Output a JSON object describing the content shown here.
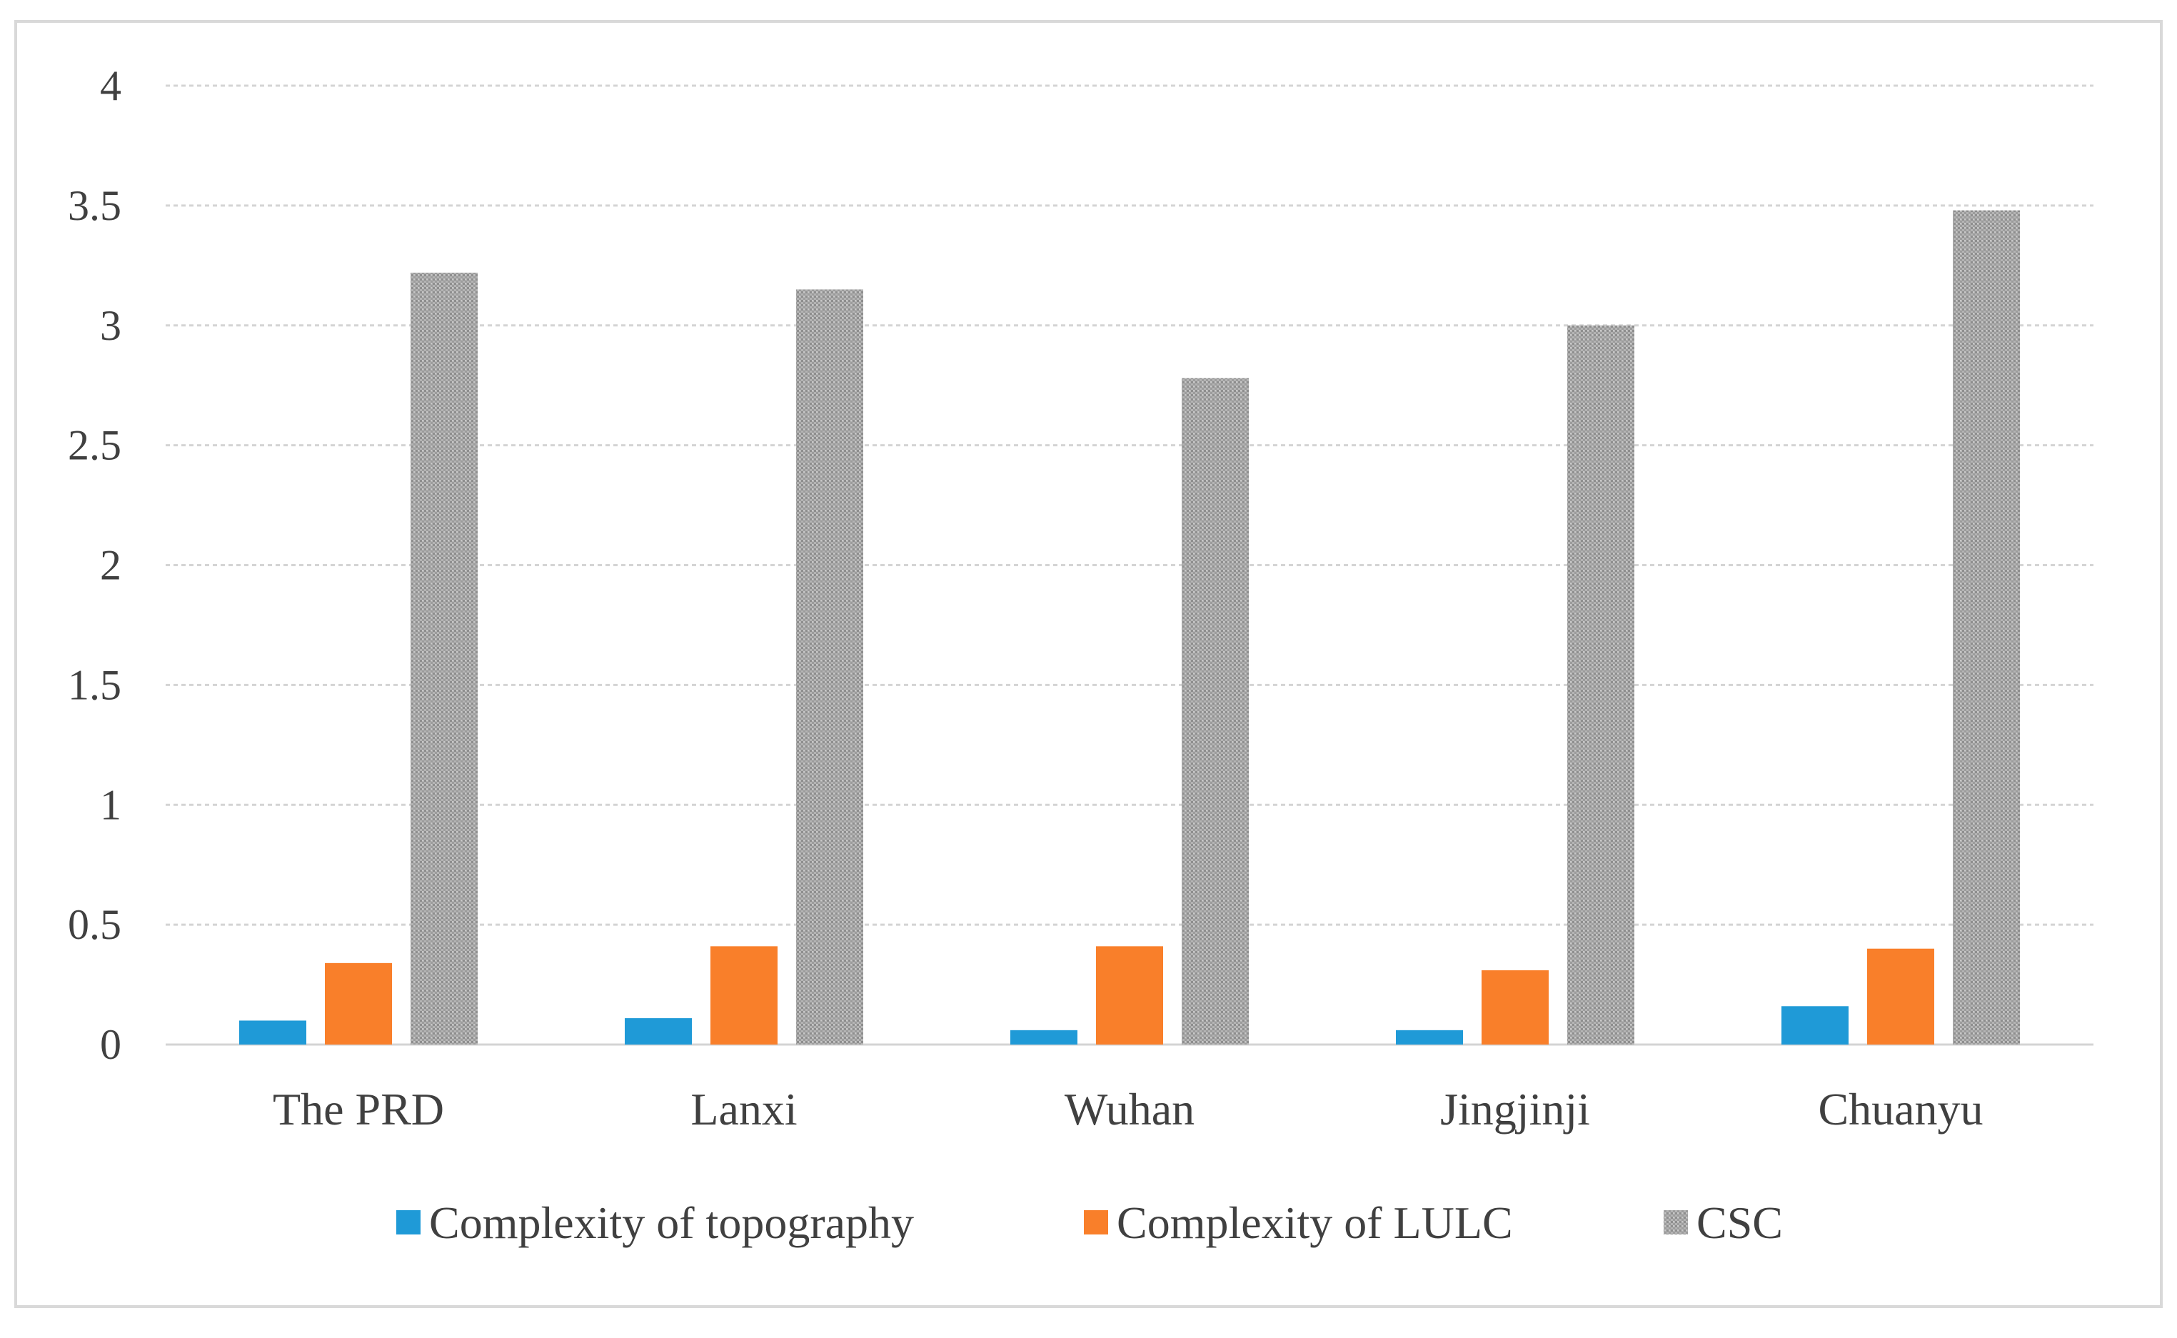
{
  "chart_data": {
    "type": "bar",
    "title": "",
    "xlabel": "",
    "ylabel": "",
    "ylim": [
      0,
      4
    ],
    "yticks": [
      "0",
      "0.5",
      "1",
      "1.5",
      "2",
      "2.5",
      "3",
      "3.5",
      "4"
    ],
    "grid": true,
    "legend_position": "bottom",
    "categories": [
      "The PRD",
      "Lanxi",
      "Wuhan",
      "Jingjinji",
      "Chuanyu"
    ],
    "series": [
      {
        "name": "Complexity of topography",
        "color": "#1F9AD7",
        "pattern": "solid",
        "values": [
          0.1,
          0.11,
          0.06,
          0.06,
          0.16
        ]
      },
      {
        "name": "Complexity of LULC",
        "color": "#F97F2A",
        "pattern": "solid",
        "values": [
          0.34,
          0.41,
          0.41,
          0.31,
          0.4
        ]
      },
      {
        "name": "CSC",
        "color": "#A8A8A8",
        "pattern": "stipple",
        "values": [
          3.22,
          3.15,
          2.78,
          3.0,
          3.48
        ]
      }
    ]
  }
}
